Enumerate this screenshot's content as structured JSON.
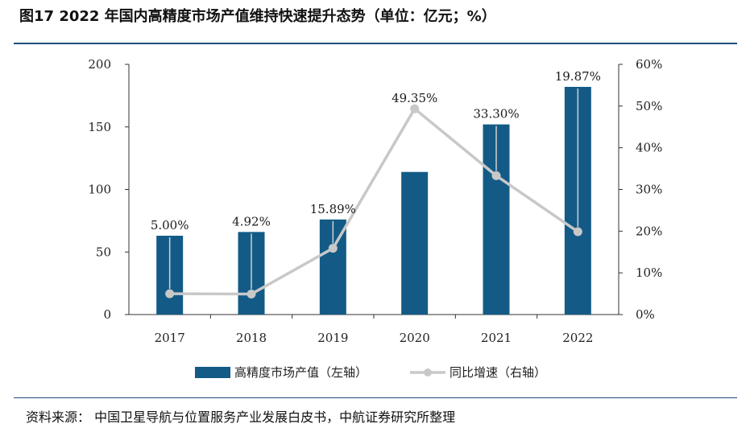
{
  "header": {
    "title": "图17  2022 年国内高精度市场产值维持快速提升态势（单位：亿元；%）"
  },
  "footer": {
    "source": "资料来源：  中国卫星导航与位置服务产业发展白皮书，中航证券研究所整理"
  },
  "colors": {
    "bar": "#135b86",
    "line": "#c8c8c8",
    "rule": "#1f4e79"
  },
  "chart_data": {
    "type": "bar",
    "title": "2022 年国内高精度市场产值维持快速提升态势",
    "categories": [
      "2017",
      "2018",
      "2019",
      "2020",
      "2021",
      "2022"
    ],
    "series": [
      {
        "name": "高精度市场产值（左轴）",
        "type": "bar",
        "axis": "left",
        "values": [
          63,
          66,
          76,
          114,
          152,
          182
        ]
      },
      {
        "name": "同比增速（右轴）",
        "type": "line",
        "axis": "right",
        "values": [
          5.0,
          4.92,
          15.89,
          49.35,
          33.3,
          19.87
        ]
      }
    ],
    "data_labels": [
      "5.00%",
      "4.92%",
      "15.89%",
      "49.35%",
      "33.30%",
      "19.87%"
    ],
    "left_axis": {
      "ylim": [
        0,
        200
      ],
      "ticks": [
        "0",
        "50",
        "100",
        "150",
        "200"
      ]
    },
    "right_axis": {
      "ylim": [
        0,
        60
      ],
      "ticks": [
        "0%",
        "10%",
        "20%",
        "30%",
        "40%",
        "50%",
        "60%"
      ]
    },
    "legend": [
      "高精度市场产值（左轴）",
      "同比增速（右轴）"
    ],
    "legend_position": "bottom"
  }
}
